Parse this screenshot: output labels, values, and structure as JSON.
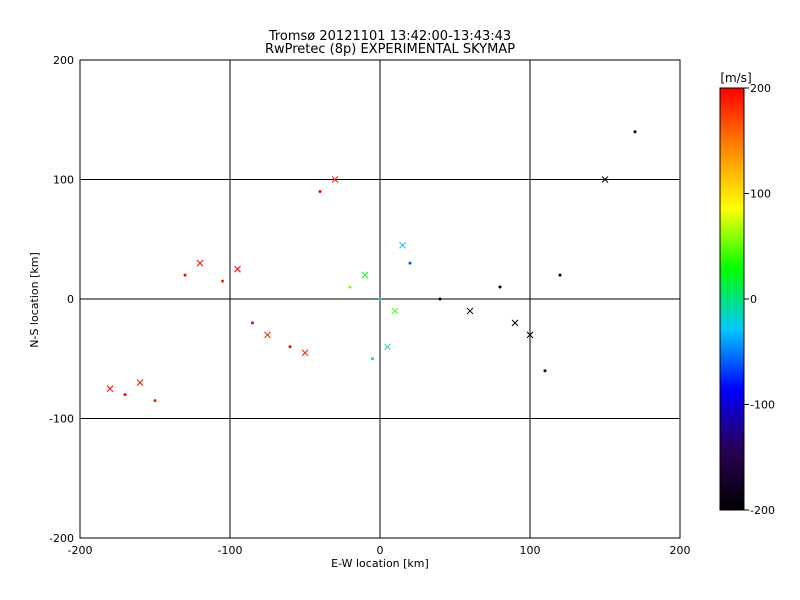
{
  "chart_data": {
    "type": "scatter",
    "title": "Tromsø 20121101 13:42:00-13:43:43",
    "subtitle": "RwPretec (8p) EXPERIMENTAL SKYMAP",
    "xlabel": "E-W location [km]",
    "ylabel": "N-S location [km]",
    "xlim": [
      -200,
      200
    ],
    "ylim": [
      -200,
      200
    ],
    "x_ticks": [
      "-200",
      "-100",
      "0",
      "100",
      "200"
    ],
    "y_ticks": [
      "-200",
      "-100",
      "0",
      "100",
      "200"
    ],
    "grid": true,
    "colorbar": {
      "label": "[m/s]",
      "range": [
        -200,
        200
      ],
      "ticks": [
        "200",
        "100",
        "0",
        "-100",
        "-200"
      ],
      "colors": [
        "#000000",
        "#2a0055",
        "#0000ff",
        "#00c8ff",
        "#00ff00",
        "#ffff00",
        "#ff8800",
        "#ff0000"
      ]
    },
    "marker_types": [
      "dot",
      "x"
    ],
    "series": [
      {
        "name": "",
        "x": [
          -130,
          -120,
          -105,
          -95,
          -85,
          -75,
          -60,
          -50,
          -40,
          -30,
          -170,
          -160,
          -150,
          -180
        ],
        "y": [
          20,
          30,
          15,
          25,
          -20,
          -30,
          -40,
          -45,
          90,
          100,
          -80,
          -70,
          -85,
          -75
        ],
        "v": [
          200,
          195,
          190,
          200,
          200,
          185,
          200,
          190,
          200,
          190,
          200,
          195,
          190,
          200
        ]
      },
      {
        "name": "",
        "x": [
          -20,
          -10,
          0,
          10,
          20,
          5,
          -5,
          15
        ],
        "y": [
          10,
          20,
          0,
          -10,
          30,
          -40,
          -50,
          45
        ],
        "v": [
          60,
          20,
          -20,
          40,
          -60,
          0,
          10,
          -30
        ]
      },
      {
        "name": "",
        "x": [
          40,
          60,
          80,
          100,
          120,
          150,
          170,
          90,
          110
        ],
        "y": [
          0,
          -10,
          10,
          -30,
          20,
          100,
          140,
          -20,
          -60
        ],
        "v": [
          -200,
          -190,
          -200,
          -195,
          -200,
          -185,
          -200,
          -190,
          -200
        ]
      }
    ]
  }
}
